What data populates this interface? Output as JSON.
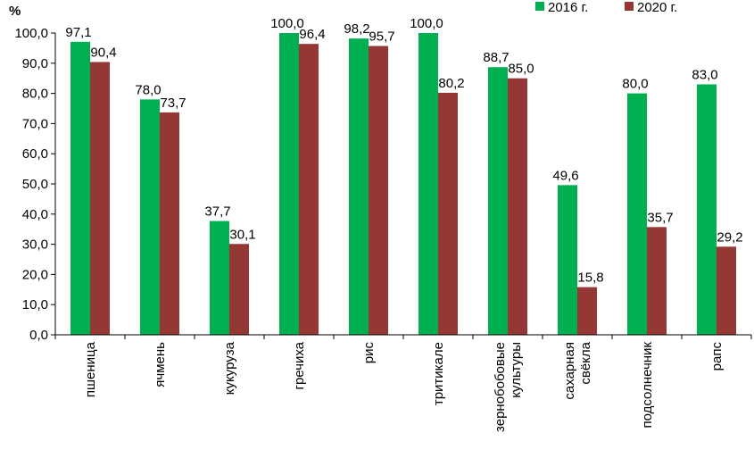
{
  "chart_data": {
    "type": "bar",
    "title": "",
    "xlabel": "",
    "ylabel": "%",
    "ylim": [
      0,
      100
    ],
    "y_ticks": [
      "0,0",
      "10,0",
      "20,0",
      "30,0",
      "40,0",
      "50,0",
      "60,0",
      "70,0",
      "80,0",
      "90,0",
      "100,0"
    ],
    "categories": [
      [
        "пшеница"
      ],
      [
        "ячмень"
      ],
      [
        "кукуруза"
      ],
      [
        "гречиха"
      ],
      [
        "рис"
      ],
      [
        "тритикале"
      ],
      [
        "зернобобовые",
        "культуры"
      ],
      [
        "сахарная",
        "свёкла"
      ],
      [
        "подсолнечник"
      ],
      [
        "рапс"
      ]
    ],
    "series": [
      {
        "name": "2016 г.",
        "color": "#00b050",
        "values": [
          97.1,
          78.0,
          37.7,
          100.0,
          98.2,
          100.0,
          88.7,
          49.6,
          80.0,
          83.0
        ],
        "labels": [
          "97,1",
          "78,0",
          "37,7",
          "100,0",
          "98,2",
          "100,0",
          "88,7",
          "49,6",
          "80,0",
          "83,0"
        ]
      },
      {
        "name": "2020 г.",
        "color": "#953735",
        "values": [
          90.4,
          73.7,
          30.1,
          96.4,
          95.7,
          80.2,
          85.0,
          15.8,
          35.7,
          29.2
        ],
        "labels": [
          "90,4",
          "73,7",
          "30,1",
          "96,4",
          "95,7",
          "80,2",
          "85,0",
          "15,8",
          "35,7",
          "29,2"
        ]
      }
    ],
    "legend_position": "top-right",
    "grid": false
  }
}
